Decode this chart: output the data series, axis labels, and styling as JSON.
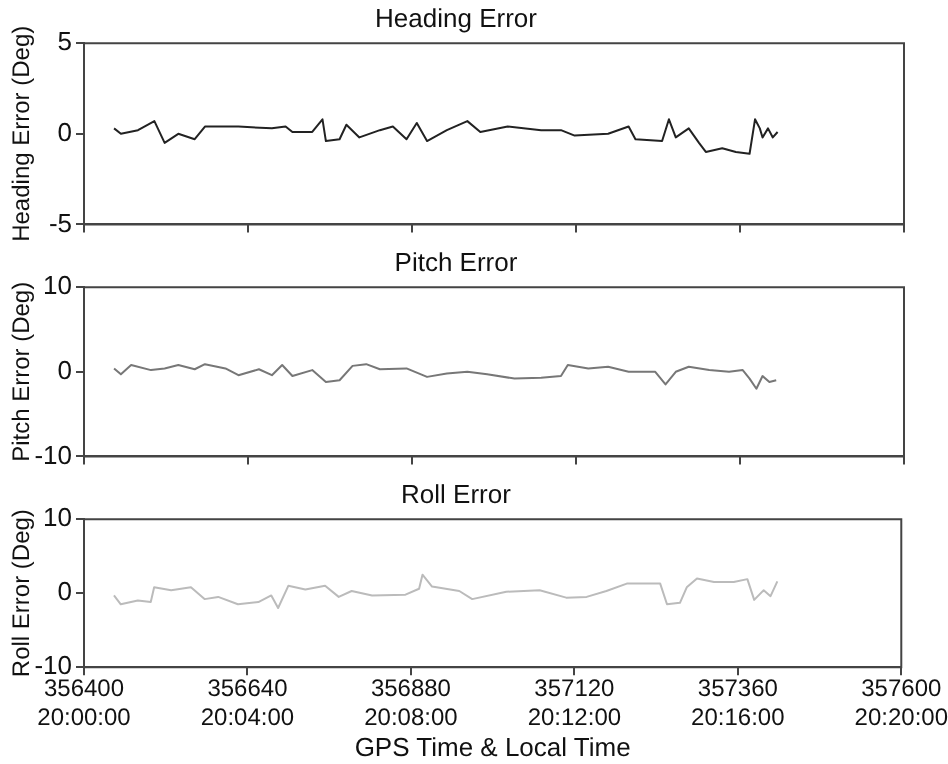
{
  "chart_data": [
    {
      "type": "line",
      "title": "Heading Error",
      "ylabel": "Heading Error (Deg)",
      "xlim": [
        356400,
        357600
      ],
      "xticks": [
        356400,
        356640,
        356880,
        357120,
        357360,
        357600
      ],
      "ylim": [
        -5,
        5
      ],
      "yticks": [
        -5,
        0,
        5
      ],
      "tick_labels": "y",
      "grid": false,
      "legend": false,
      "marker": "none",
      "series": [
        {
          "color": "#222222",
          "x": [
            356444,
            356454,
            356479,
            356503,
            356518,
            356538,
            356562,
            356577,
            356626,
            356675,
            356695,
            356705,
            356734,
            356749,
            356754,
            356774,
            356784,
            356803,
            356833,
            356852,
            356872,
            356887,
            356902,
            356931,
            356961,
            356980,
            357020,
            357069,
            357098,
            357118,
            357167,
            357197,
            357207,
            357246,
            357256,
            357266,
            357285,
            357300,
            357310,
            357334,
            357354,
            357374,
            357382,
            357389,
            357393,
            357401,
            357408,
            357415
          ],
          "values": [
            0.3,
            0.0,
            0.2,
            0.7,
            -0.5,
            0.0,
            -0.3,
            0.4,
            0.4,
            0.3,
            0.4,
            0.1,
            0.1,
            0.8,
            -0.4,
            -0.3,
            0.5,
            -0.2,
            0.2,
            0.4,
            -0.3,
            0.6,
            -0.4,
            0.2,
            0.7,
            0.1,
            0.4,
            0.2,
            0.2,
            -0.1,
            0.0,
            0.4,
            -0.3,
            -0.4,
            0.8,
            -0.2,
            0.3,
            -0.5,
            -1.0,
            -0.8,
            -1.0,
            -1.1,
            0.8,
            0.3,
            -0.2,
            0.3,
            -0.2,
            0.1
          ]
        }
      ]
    },
    {
      "type": "line",
      "title": "Pitch Error",
      "ylabel": "Pitch Error (Deg)",
      "xlim": [
        356400,
        357600
      ],
      "xticks": [
        356400,
        356640,
        356880,
        357120,
        357360,
        357600
      ],
      "ylim": [
        -10,
        10
      ],
      "yticks": [
        -10,
        0,
        10
      ],
      "tick_labels": "y",
      "grid": false,
      "legend": false,
      "marker": "none",
      "series": [
        {
          "color": "#777777",
          "x": [
            356444,
            356454,
            356469,
            356498,
            356518,
            356538,
            356562,
            356577,
            356607,
            356626,
            356656,
            356675,
            356690,
            356705,
            356734,
            356754,
            356774,
            356793,
            356813,
            356833,
            356872,
            356902,
            356931,
            356961,
            356990,
            357030,
            357069,
            357098,
            357108,
            357138,
            357167,
            357197,
            357236,
            357251,
            357266,
            357285,
            357315,
            357344,
            357364,
            357374,
            357384,
            357393,
            357403,
            357413
          ],
          "values": [
            0.4,
            -0.3,
            0.8,
            0.2,
            0.4,
            0.8,
            0.3,
            0.9,
            0.4,
            -0.4,
            0.3,
            -0.4,
            0.8,
            -0.5,
            0.2,
            -1.2,
            -1.0,
            0.7,
            0.9,
            0.3,
            0.4,
            -0.6,
            -0.2,
            0.0,
            -0.3,
            -0.8,
            -0.7,
            -0.5,
            0.8,
            0.4,
            0.6,
            0.0,
            0.0,
            -1.5,
            0.0,
            0.6,
            0.2,
            0.0,
            0.2,
            -0.8,
            -2.0,
            -0.5,
            -1.2,
            -1.0
          ]
        }
      ]
    },
    {
      "type": "line",
      "title": "Roll Error",
      "ylabel": "Roll Error (Deg)",
      "xlabel": "GPS Time & Local Time",
      "xlim": [
        356400,
        357600
      ],
      "xticks": [
        356400,
        356640,
        356880,
        357120,
        357360,
        357600
      ],
      "x2lim": [
        20,
        20.333333
      ],
      "x2ticks": [
        {
          "value": 20,
          "label": "20:00:00"
        },
        {
          "value": 20.066667,
          "label": "20:04:00"
        },
        {
          "value": 20.133333,
          "label": "20:08:00"
        },
        {
          "value": 20.2,
          "label": "20:12:00"
        },
        {
          "value": 20.266667,
          "label": "20:16:00"
        },
        {
          "value": 20.333333,
          "label": "20:20:00"
        }
      ],
      "ylim": [
        -10,
        10
      ],
      "yticks": [
        -10,
        0,
        10
      ],
      "grid": false,
      "legend": false,
      "marker": "none",
      "series": [
        {
          "color": "#bbbbbb",
          "x": [
            356444,
            356454,
            356479,
            356498,
            356503,
            356528,
            356557,
            356577,
            356597,
            356626,
            356656,
            356675,
            356685,
            356700,
            356725,
            356754,
            356774,
            356793,
            356823,
            356872,
            356892,
            356897,
            356911,
            356951,
            356970,
            357020,
            357069,
            357108,
            357138,
            357167,
            357197,
            357246,
            357256,
            357275,
            357285,
            357300,
            357325,
            357354,
            357374,
            357384,
            357398,
            357408,
            357418
          ],
          "values": [
            -0.3,
            -1.5,
            -1.0,
            -1.2,
            0.8,
            0.4,
            0.8,
            -0.8,
            -0.5,
            -1.5,
            -1.2,
            -0.3,
            -2.0,
            1.0,
            0.5,
            1.0,
            -0.5,
            0.3,
            -0.3,
            -0.2,
            0.6,
            2.5,
            0.9,
            0.3,
            -0.8,
            0.2,
            0.4,
            -0.6,
            -0.5,
            0.3,
            1.3,
            1.3,
            -1.5,
            -1.3,
            0.8,
            2.0,
            1.5,
            1.5,
            1.9,
            -0.9,
            0.4,
            -0.4,
            1.6
          ]
        }
      ]
    }
  ]
}
